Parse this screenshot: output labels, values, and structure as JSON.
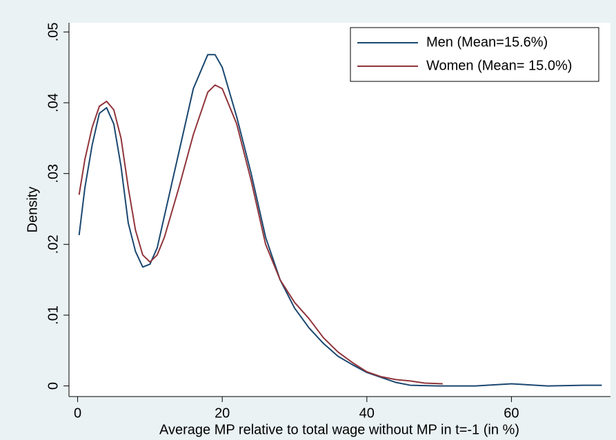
{
  "chart_data": {
    "type": "line",
    "y_label": "Density",
    "x_label": "Average MP relative to total wage without MP in t=-1 (in %)",
    "xlim": [
      -1.2,
      73.7
    ],
    "ylim": [
      -0.0015,
      0.0513
    ],
    "xticks": [
      0,
      20,
      40,
      60
    ],
    "yticks": [
      0,
      {
        "value": 0.01,
        "label": ".01"
      },
      {
        "value": 0.02,
        "label": ".02"
      },
      {
        "value": 0.03,
        "label": ".03"
      },
      {
        "value": 0.04,
        "label": ".04"
      },
      {
        "value": 0.05,
        "label": ".05"
      }
    ],
    "legend": "top-right",
    "series": [
      {
        "name": "Men (Mean=15.6%)",
        "color": "#1a476f",
        "x": [
          0.2,
          1,
          2,
          3,
          4,
          5,
          6,
          7,
          8,
          9,
          10,
          11,
          12,
          14,
          16,
          18,
          19,
          20,
          22,
          24,
          26,
          28,
          30,
          32,
          34,
          36,
          38,
          40,
          42,
          44,
          46,
          50,
          55,
          60,
          65,
          70,
          72.5
        ],
        "values": [
          0.0213,
          0.028,
          0.034,
          0.0385,
          0.0393,
          0.037,
          0.031,
          0.023,
          0.019,
          0.0168,
          0.0172,
          0.0195,
          0.024,
          0.033,
          0.042,
          0.0468,
          0.0468,
          0.045,
          0.038,
          0.03,
          0.021,
          0.015,
          0.011,
          0.0082,
          0.006,
          0.0042,
          0.003,
          0.0019,
          0.0012,
          0.0005,
          0.0001,
          0,
          0,
          0.0003,
          0,
          0.0001,
          0.0001
        ]
      },
      {
        "name": "Women (Mean= 15.0%)",
        "color": "#90353b",
        "x": [
          0.2,
          1,
          2,
          3,
          4,
          5,
          6,
          7,
          8,
          9,
          10,
          11,
          12,
          14,
          16,
          18,
          19,
          20,
          22,
          24,
          26,
          28,
          30,
          32,
          34,
          36,
          38,
          40,
          42,
          44,
          46,
          48,
          50.5
        ],
        "values": [
          0.027,
          0.032,
          0.0365,
          0.0395,
          0.0402,
          0.039,
          0.035,
          0.028,
          0.022,
          0.0185,
          0.0175,
          0.0185,
          0.021,
          0.028,
          0.0355,
          0.0415,
          0.0425,
          0.042,
          0.037,
          0.029,
          0.02,
          0.015,
          0.0118,
          0.0095,
          0.0068,
          0.0048,
          0.0033,
          0.002,
          0.0013,
          0.0009,
          0.0007,
          0.0004,
          0.0003
        ]
      }
    ]
  }
}
